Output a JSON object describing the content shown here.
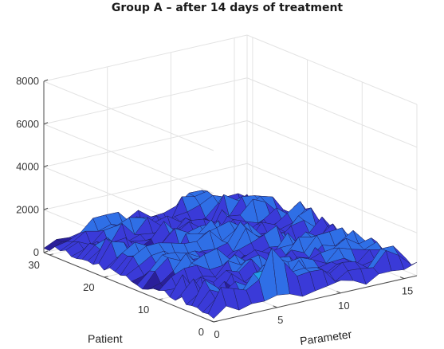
{
  "chart_data": {
    "type": "surface",
    "title": "Group A – after 14 days of treatment",
    "xlabel": "Parameter",
    "ylabel": "Patient",
    "zlabel": "",
    "xlim": [
      0,
      16
    ],
    "ylim": [
      0,
      31
    ],
    "zlim": [
      0,
      8000
    ],
    "x_ticks": [
      "0",
      "5",
      "10",
      "15"
    ],
    "y_ticks": [
      "0",
      "10",
      "20",
      "30"
    ],
    "z_ticks": [
      "0",
      "2000",
      "4000",
      "6000",
      "8000"
    ],
    "grid": true,
    "colormap": [
      "#2a1f9a",
      "#3a3ad8",
      "#2f6fe6",
      "#22a0e8",
      "#33c7b8",
      "#52e07a"
    ],
    "z_typical_range": [
      100,
      1800
    ],
    "z_peaks": [
      {
        "parameter": 5,
        "patient": 1,
        "z": 2500
      },
      {
        "parameter": 7,
        "patient": 18,
        "z": 1600
      },
      {
        "parameter": 9,
        "patient": 15,
        "z": 1300
      },
      {
        "parameter": 14,
        "patient": 8,
        "z": 1200
      }
    ]
  }
}
